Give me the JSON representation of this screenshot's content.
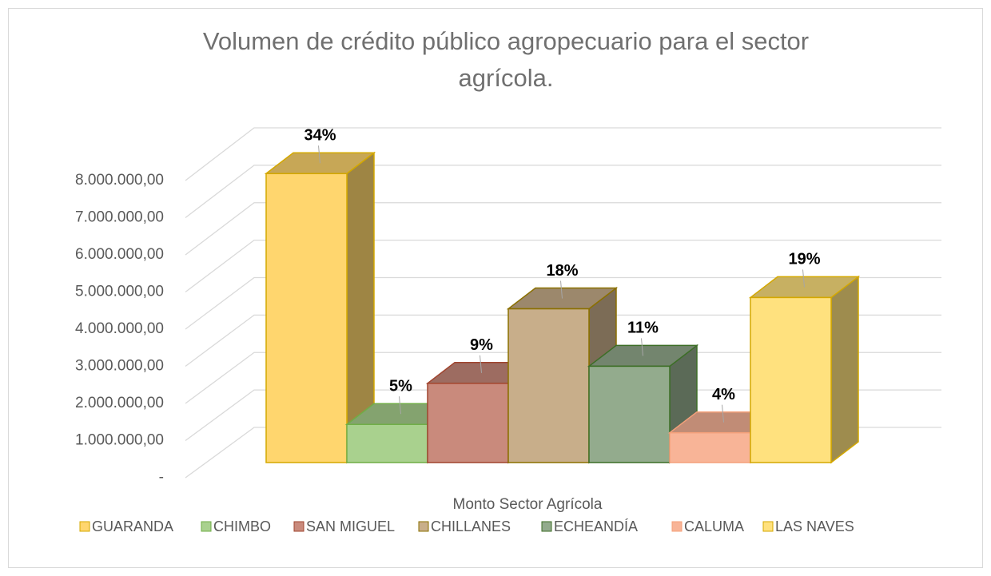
{
  "chart_data": {
    "type": "bar3d",
    "title": [
      "Volumen de crédito público agropecuario para el sector",
      "agrícola."
    ],
    "categories": [
      "Monto Sector Agrícola"
    ],
    "series": [
      {
        "name": "GUARANDA",
        "color": "#ffd66e",
        "border": "#d4a800",
        "values": [
          7950000
        ],
        "value_labels": [
          "34%"
        ]
      },
      {
        "name": "CHIMBO",
        "color": "#a9d18e",
        "border": "#70ad47",
        "values": [
          1050000
        ],
        "value_labels": [
          "5%"
        ]
      },
      {
        "name": "SAN MIGUEL",
        "color": "#c98a7c",
        "border": "#a0452f",
        "values": [
          2180000
        ],
        "value_labels": [
          "9%"
        ]
      },
      {
        "name": "CHILLANES",
        "color": "#c8ae8a",
        "border": "#8b7000",
        "values": [
          4230000
        ],
        "value_labels": [
          "18%"
        ]
      },
      {
        "name": "ECHEANDÍA",
        "color": "#93ab8d",
        "border": "#3c6e26",
        "values": [
          2650000
        ],
        "value_labels": [
          "11%"
        ]
      },
      {
        "name": "CALUMA",
        "color": "#f8b497",
        "border": "#f4a07a",
        "values": [
          820000
        ],
        "value_labels": [
          "4%"
        ]
      },
      {
        "name": "LAS NAVES",
        "color": "#ffe17e",
        "border": "#d4a800",
        "values": [
          4540000
        ],
        "value_labels": [
          "19%"
        ]
      }
    ],
    "ylim": [
      0,
      8000000
    ],
    "yticks": [
      {
        "value": 0,
        "label": "-"
      },
      {
        "value": 1000000,
        "label": "1.000.000,00"
      },
      {
        "value": 2000000,
        "label": "2.000.000,00"
      },
      {
        "value": 3000000,
        "label": "3.000.000,00"
      },
      {
        "value": 4000000,
        "label": "4.000.000,00"
      },
      {
        "value": 5000000,
        "label": "5.000.000,00"
      },
      {
        "value": 6000000,
        "label": "6.000.000,00"
      },
      {
        "value": 7000000,
        "label": "7.000.000,00"
      },
      {
        "value": 8000000,
        "label": "8.000.000,00"
      }
    ],
    "grid": true,
    "legend": "bottom"
  }
}
